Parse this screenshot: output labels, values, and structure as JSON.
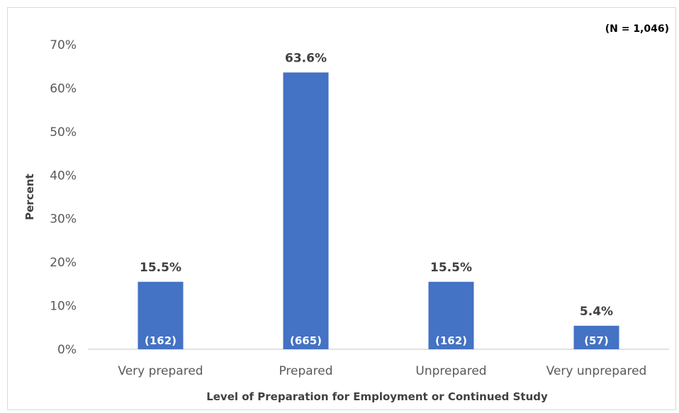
{
  "chart_data": {
    "type": "bar",
    "categories": [
      "Very prepared",
      "Prepared",
      "Unprepared",
      "Very unprepared"
    ],
    "values": [
      15.5,
      63.6,
      15.5,
      5.4
    ],
    "value_labels": [
      "15.5%",
      "63.6%",
      "15.5%",
      "5.4%"
    ],
    "counts": [
      "(162)",
      "(665)",
      "(162)",
      "(57)"
    ],
    "xlabel": "Level of Preparation for Employment or Continued Study",
    "ylabel": "Percent",
    "ylim": [
      0,
      70
    ],
    "yticks": [
      0,
      10,
      20,
      30,
      40,
      50,
      60,
      70
    ],
    "ytick_labels": [
      "0%",
      "10%",
      "20%",
      "30%",
      "40%",
      "50%",
      "60%",
      "70%"
    ],
    "annotation": "(N = 1,046)",
    "grid": false,
    "legend": "none",
    "bar_color": "#4472c4"
  }
}
